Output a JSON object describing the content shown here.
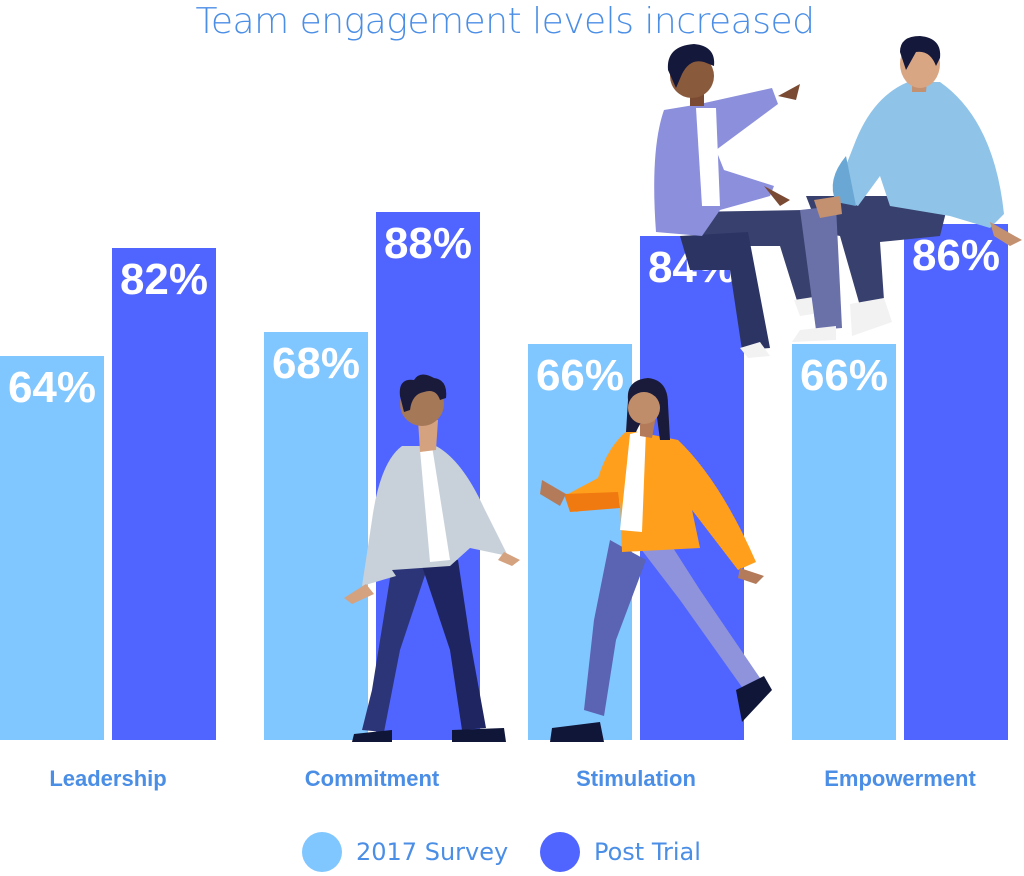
{
  "chart_data": {
    "type": "bar",
    "title": "Team engagement levels increased",
    "categories": [
      "Leadership",
      "Commitment",
      "Stimulation",
      "Empowerment"
    ],
    "series": [
      {
        "name": "2017 Survey",
        "values": [
          64,
          68,
          66,
          66
        ],
        "color": "#80c6ff"
      },
      {
        "name": "Post Trial",
        "values": [
          82,
          88,
          84,
          86
        ],
        "color": "#5064ff"
      }
    ],
    "value_suffix": "%",
    "ylim": [
      0,
      100
    ],
    "grid": false,
    "legend_position": "bottom-center"
  },
  "colors": {
    "title": "#4b8ee6",
    "category_label": "#4b8ee6",
    "bar_text": "#ffffff"
  },
  "illustration": {
    "icons": [
      "sitting-person-pointing-icon",
      "sitting-person-listening-icon",
      "walking-person-man-icon",
      "walking-person-woman-icon"
    ]
  }
}
